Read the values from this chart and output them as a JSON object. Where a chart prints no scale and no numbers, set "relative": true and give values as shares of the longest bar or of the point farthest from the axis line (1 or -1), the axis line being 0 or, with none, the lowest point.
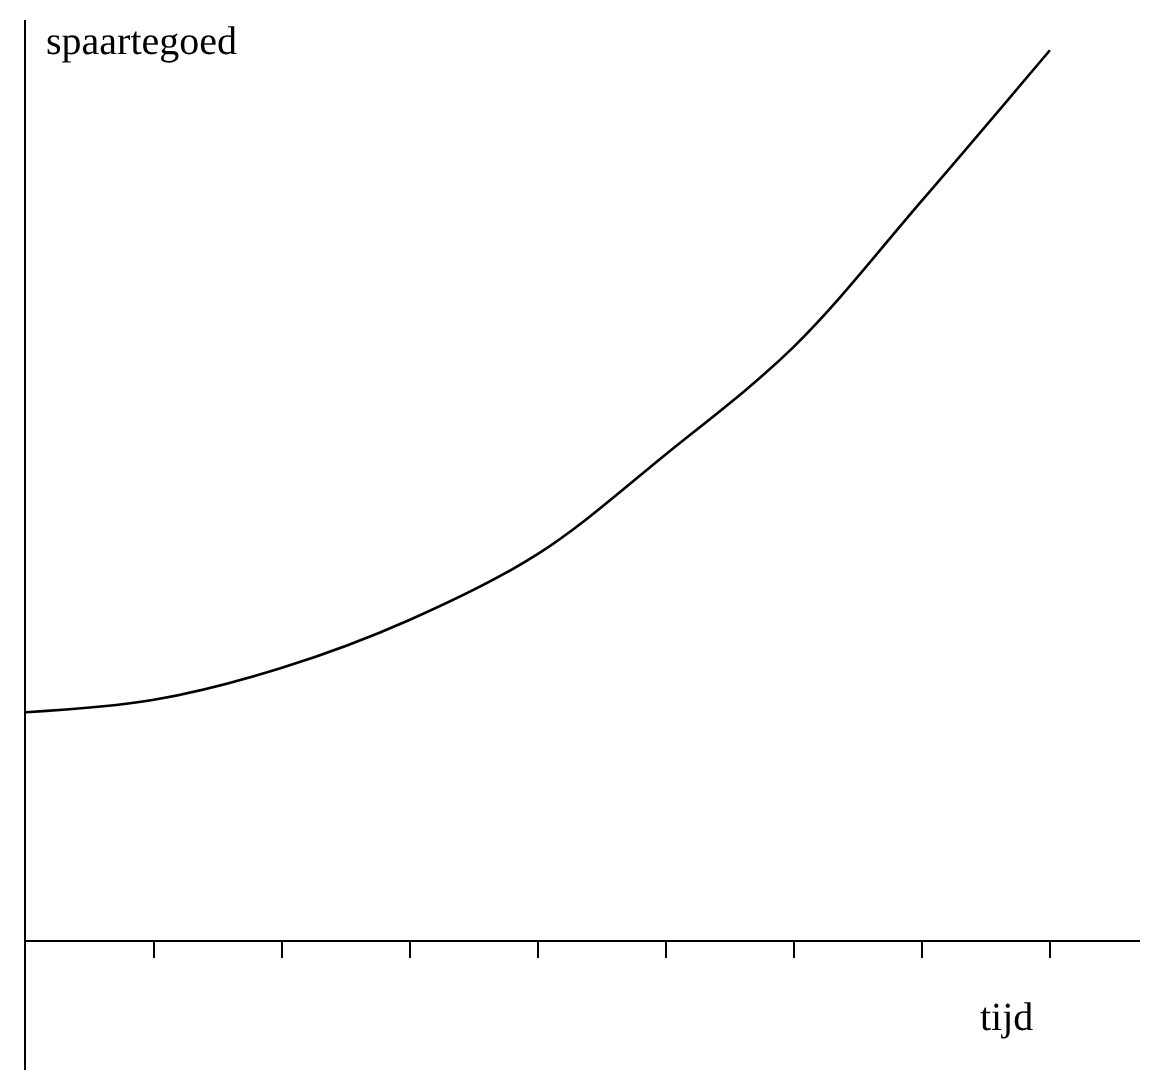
{
  "chart_data": {
    "type": "line",
    "relative": true,
    "xlabel": "tijd",
    "ylabel": "spaartegoed",
    "categories": [
      null,
      null,
      null,
      null,
      null,
      null,
      null,
      null,
      null
    ],
    "series": [
      {
        "color": "#000000",
        "values": [
          0.256,
          0.27,
          0.306,
          0.36,
          0.434,
          0.546,
          0.667,
          0.831,
          1
        ]
      }
    ],
    "marker": "none",
    "line_style": "solid"
  }
}
